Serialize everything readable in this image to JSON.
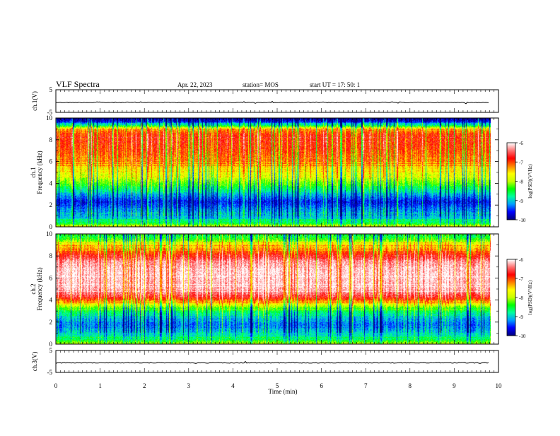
{
  "header": {
    "title": "VLF Spectra",
    "date": "Apr. 22, 2023",
    "station": "station= MOS",
    "start": "start  UT  =   17: 50: 1"
  },
  "chart_data": {
    "type": "heatmap",
    "x": {
      "label": "Time  (min)",
      "range": [
        0,
        10
      ],
      "ticks": [
        "0",
        "1",
        "2",
        "3",
        "4",
        "5",
        "6",
        "7",
        "8",
        "9",
        "10"
      ]
    },
    "panels": [
      {
        "name": "ch.1(V)",
        "kind": "waveform",
        "ylim": [
          -5,
          5
        ],
        "ticks": [
          "5",
          "-5"
        ],
        "level": -0.6
      },
      {
        "name": "ch.1",
        "kind": "spectrogram",
        "ylabel": "Frequency (kHz)",
        "ylim": [
          0,
          10
        ],
        "ticks": [
          "0",
          "2",
          "4",
          "6",
          "8",
          "10"
        ],
        "profile": [
          {
            "f": 0.0,
            "v": -7.6
          },
          {
            "f": 0.3,
            "v": -8.5
          },
          {
            "f": 0.8,
            "v": -9.0
          },
          {
            "f": 1.5,
            "v": -9.2
          },
          {
            "f": 2.3,
            "v": -9.6
          },
          {
            "f": 3.0,
            "v": -9.1
          },
          {
            "f": 3.8,
            "v": -8.4
          },
          {
            "f": 4.5,
            "v": -7.9
          },
          {
            "f": 5.5,
            "v": -7.5
          },
          {
            "f": 6.5,
            "v": -7.1
          },
          {
            "f": 7.5,
            "v": -6.9
          },
          {
            "f": 8.5,
            "v": -6.9
          },
          {
            "f": 9.0,
            "v": -7.4
          },
          {
            "f": 9.3,
            "v": -8.6
          },
          {
            "f": 9.7,
            "v": -9.7
          },
          {
            "f": 10.0,
            "v": -10.0
          }
        ]
      },
      {
        "name": "ch.2",
        "kind": "spectrogram",
        "ylabel": "Frequency (kHz)",
        "ylim": [
          0,
          10
        ],
        "ticks": [
          "0",
          "2",
          "4",
          "6",
          "8",
          "10"
        ],
        "profile": [
          {
            "f": 0.0,
            "v": -7.9
          },
          {
            "f": 0.4,
            "v": -8.6
          },
          {
            "f": 1.0,
            "v": -9.0
          },
          {
            "f": 1.8,
            "v": -9.3
          },
          {
            "f": 2.5,
            "v": -9.0
          },
          {
            "f": 3.2,
            "v": -8.4
          },
          {
            "f": 3.8,
            "v": -7.4
          },
          {
            "f": 4.3,
            "v": -6.6
          },
          {
            "f": 5.0,
            "v": -6.2
          },
          {
            "f": 6.5,
            "v": -6.1
          },
          {
            "f": 7.5,
            "v": -6.3
          },
          {
            "f": 8.2,
            "v": -6.9
          },
          {
            "f": 9.0,
            "v": -7.6
          },
          {
            "f": 9.5,
            "v": -8.3
          },
          {
            "f": 10.0,
            "v": -8.7
          }
        ]
      },
      {
        "name": "ch.3(V)",
        "kind": "waveform",
        "ylim": [
          -5,
          5
        ],
        "ticks": [
          "5",
          "-5"
        ],
        "level": -0.6
      }
    ],
    "colorbar": {
      "label": "log(PSD)(V²/Hz)",
      "range": [
        -10,
        -6
      ],
      "ticks": [
        "-6",
        "-7",
        "-8",
        "-9",
        "-10"
      ],
      "colors": [
        "#000080",
        "#0000ff",
        "#00a0ff",
        "#00ffa0",
        "#00ff00",
        "#c8ff00",
        "#ffff00",
        "#ff8000",
        "#ff0000",
        "#ff7070",
        "#ffffff"
      ]
    }
  }
}
